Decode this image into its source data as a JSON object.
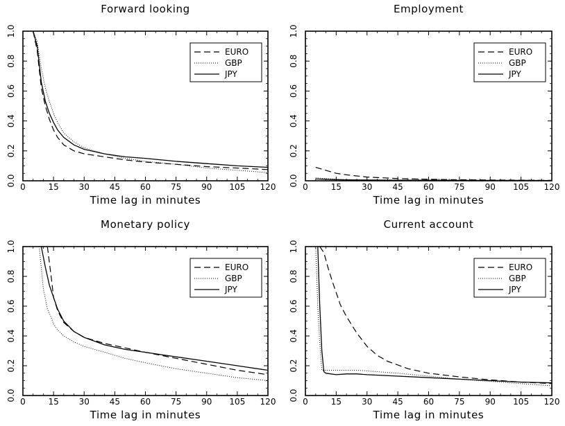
{
  "chart_data": [
    {
      "type": "line",
      "title": "Forward looking",
      "xlabel": "Time lag in minutes",
      "ylabel": "",
      "xlim": [
        0,
        120
      ],
      "ylim": [
        0,
        1
      ],
      "xticks": [
        "0",
        "15",
        "30",
        "45",
        "60",
        "75",
        "90",
        "105",
        "120"
      ],
      "yticks": [
        "0.0",
        "0.2",
        "0.4",
        "0.6",
        "0.8",
        "1.0"
      ],
      "legend_position": "top-right",
      "grid": false,
      "series": [
        {
          "name": "EURO",
          "style": "dashed",
          "x": [
            5,
            7,
            9,
            11,
            13,
            15,
            17,
            20,
            25,
            30,
            40,
            50,
            60,
            75,
            90,
            105,
            120
          ],
          "y": [
            1.0,
            0.87,
            0.62,
            0.5,
            0.41,
            0.34,
            0.29,
            0.24,
            0.2,
            0.18,
            0.16,
            0.14,
            0.125,
            0.11,
            0.095,
            0.085,
            0.075
          ]
        },
        {
          "name": "GBP",
          "style": "dotted",
          "x": [
            5,
            7,
            9,
            11,
            13,
            15,
            17,
            20,
            25,
            30,
            40,
            50,
            60,
            75,
            90,
            105,
            120
          ],
          "y": [
            1.0,
            0.93,
            0.75,
            0.62,
            0.53,
            0.45,
            0.39,
            0.32,
            0.26,
            0.22,
            0.18,
            0.15,
            0.13,
            0.11,
            0.085,
            0.07,
            0.055
          ]
        },
        {
          "name": "JPY",
          "style": "solid",
          "x": [
            5,
            7,
            9,
            11,
            13,
            15,
            17,
            20,
            25,
            30,
            40,
            50,
            60,
            75,
            90,
            105,
            120
          ],
          "y": [
            1.0,
            0.9,
            0.66,
            0.53,
            0.45,
            0.39,
            0.34,
            0.29,
            0.24,
            0.21,
            0.18,
            0.16,
            0.15,
            0.13,
            0.115,
            0.1,
            0.09
          ]
        }
      ]
    },
    {
      "type": "line",
      "title": "Employment",
      "xlabel": "Time lag in minutes",
      "ylabel": "",
      "xlim": [
        0,
        120
      ],
      "ylim": [
        0,
        1
      ],
      "xticks": [
        "0",
        "15",
        "30",
        "45",
        "60",
        "75",
        "90",
        "105",
        "120"
      ],
      "yticks": [
        "0.0",
        "0.2",
        "0.4",
        "0.6",
        "0.8",
        "1.0"
      ],
      "legend_position": "top-right",
      "grid": false,
      "series": [
        {
          "name": "EURO",
          "style": "dashed",
          "x": [
            5,
            10,
            15,
            20,
            30,
            45,
            60,
            75,
            90,
            105,
            120
          ],
          "y": [
            0.09,
            0.07,
            0.05,
            0.04,
            0.025,
            0.015,
            0.01,
            0.007,
            0.005,
            0.004,
            0.003
          ]
        },
        {
          "name": "GBP",
          "style": "dotted",
          "x": [
            5,
            10,
            15,
            20,
            30,
            45,
            60,
            75,
            90,
            105,
            120
          ],
          "y": [
            0.02,
            0.015,
            0.01,
            0.008,
            0.006,
            0.004,
            0.003,
            0.002,
            0.002,
            0.001,
            0.001
          ]
        },
        {
          "name": "JPY",
          "style": "solid",
          "x": [
            5,
            10,
            15,
            20,
            30,
            45,
            60,
            75,
            90,
            105,
            120
          ],
          "y": [
            0.012,
            0.01,
            0.008,
            0.006,
            0.005,
            0.004,
            0.004,
            0.003,
            0.003,
            0.003,
            0.002
          ]
        }
      ]
    },
    {
      "type": "line",
      "title": "Monetary policy",
      "xlabel": "Time lag in minutes",
      "ylabel": "",
      "xlim": [
        0,
        120
      ],
      "ylim": [
        0,
        1
      ],
      "xticks": [
        "0",
        "15",
        "30",
        "45",
        "60",
        "75",
        "90",
        "105",
        "120"
      ],
      "yticks": [
        "0.0",
        "0.2",
        "0.4",
        "0.6",
        "0.8",
        "1.0"
      ],
      "legend_position": "top-right",
      "grid": false,
      "series": [
        {
          "name": "EURO",
          "style": "dashed",
          "x": [
            12,
            14,
            15,
            17,
            20,
            25,
            30,
            40,
            50,
            60,
            75,
            90,
            105,
            120
          ],
          "y": [
            1.0,
            0.78,
            0.66,
            0.57,
            0.49,
            0.43,
            0.39,
            0.35,
            0.32,
            0.29,
            0.25,
            0.21,
            0.17,
            0.14
          ]
        },
        {
          "name": "GBP",
          "style": "dotted",
          "x": [
            8,
            10,
            12,
            14,
            15,
            17,
            20,
            25,
            30,
            40,
            50,
            60,
            75,
            90,
            105,
            120
          ],
          "y": [
            1.0,
            0.72,
            0.58,
            0.52,
            0.48,
            0.44,
            0.4,
            0.36,
            0.33,
            0.29,
            0.25,
            0.22,
            0.18,
            0.15,
            0.12,
            0.1
          ]
        },
        {
          "name": "JPY",
          "style": "solid",
          "x": [
            9,
            11,
            13,
            15,
            17,
            20,
            25,
            30,
            40,
            50,
            60,
            75,
            90,
            105,
            120
          ],
          "y": [
            1.0,
            0.86,
            0.74,
            0.66,
            0.58,
            0.5,
            0.43,
            0.39,
            0.34,
            0.31,
            0.29,
            0.26,
            0.23,
            0.2,
            0.17
          ]
        }
      ]
    },
    {
      "type": "line",
      "title": "Current account",
      "xlabel": "Time lag in minutes",
      "ylabel": "",
      "xlim": [
        0,
        120
      ],
      "ylim": [
        0,
        1
      ],
      "xticks": [
        "0",
        "15",
        "30",
        "45",
        "60",
        "75",
        "90",
        "105",
        "120"
      ],
      "yticks": [
        "0.0",
        "0.2",
        "0.4",
        "0.6",
        "0.8",
        "1.0"
      ],
      "legend_position": "top-right",
      "grid": false,
      "series": [
        {
          "name": "EURO",
          "style": "dashed",
          "x": [
            7,
            9,
            11,
            13,
            15,
            17,
            20,
            25,
            30,
            35,
            40,
            50,
            60,
            75,
            90,
            105,
            120
          ],
          "y": [
            1.0,
            0.96,
            0.86,
            0.77,
            0.69,
            0.61,
            0.53,
            0.42,
            0.33,
            0.27,
            0.23,
            0.18,
            0.15,
            0.125,
            0.105,
            0.09,
            0.08
          ]
        },
        {
          "name": "GBP",
          "style": "dotted",
          "x": [
            5,
            6,
            7,
            8,
            10,
            15,
            20,
            25,
            30,
            45,
            60,
            75,
            90,
            105,
            120
          ],
          "y": [
            1.0,
            0.6,
            0.35,
            0.17,
            0.17,
            0.17,
            0.17,
            0.17,
            0.165,
            0.15,
            0.13,
            0.11,
            0.095,
            0.08,
            0.065
          ]
        },
        {
          "name": "JPY",
          "style": "solid",
          "x": [
            6,
            7,
            8,
            9,
            10,
            15,
            20,
            25,
            30,
            45,
            60,
            75,
            90,
            105,
            120
          ],
          "y": [
            1.0,
            0.6,
            0.3,
            0.16,
            0.15,
            0.14,
            0.145,
            0.145,
            0.14,
            0.13,
            0.12,
            0.11,
            0.1,
            0.09,
            0.085
          ]
        }
      ]
    }
  ]
}
